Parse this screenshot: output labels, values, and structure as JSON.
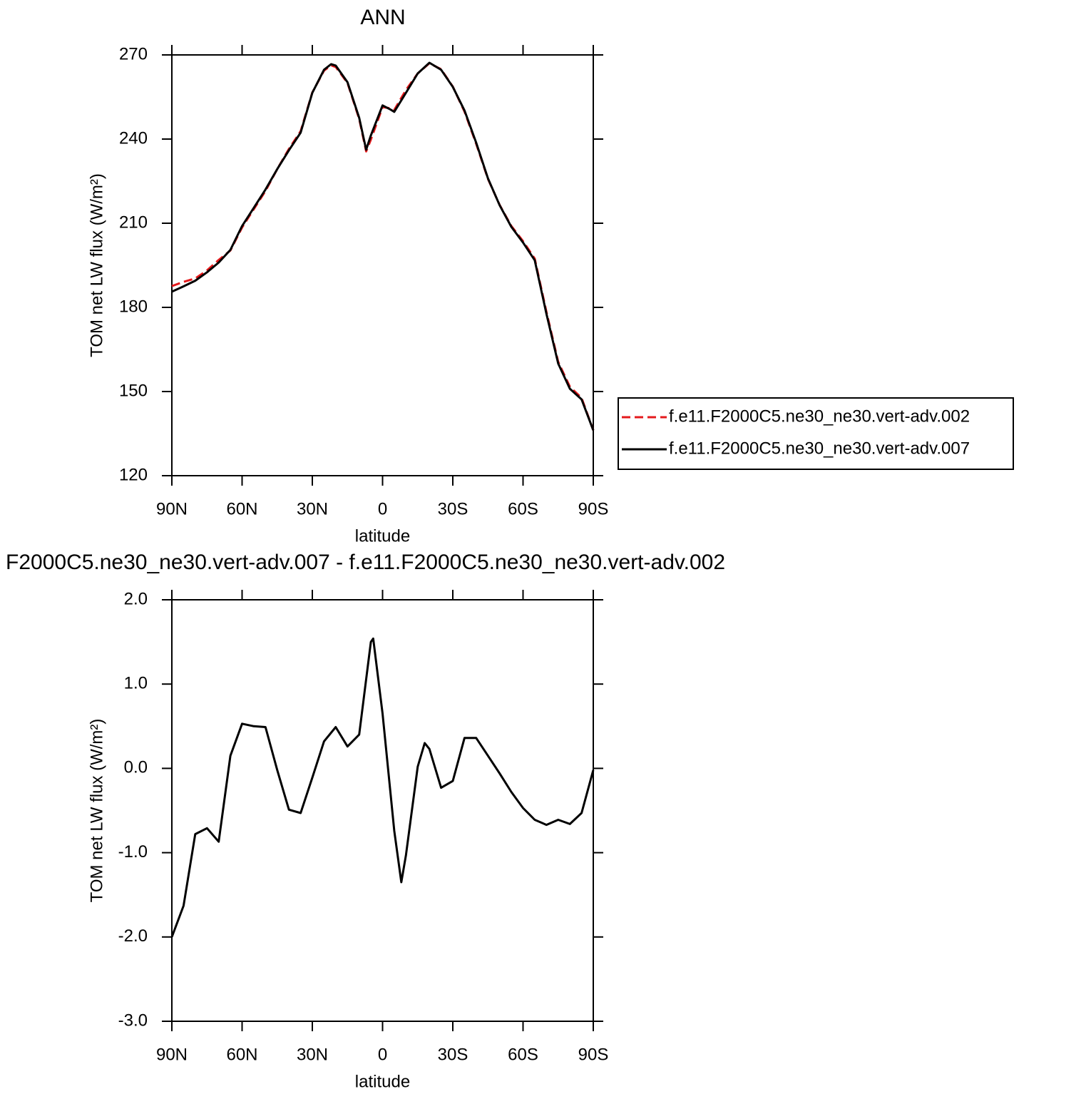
{
  "chart_data": [
    {
      "type": "line",
      "title": "ANN",
      "xlabel": "latitude",
      "ylabel": "TOM net LW flux (W/m²)",
      "x": [
        90,
        85,
        80,
        75,
        70,
        65,
        60,
        55,
        50,
        45,
        40,
        35,
        30,
        25,
        22,
        20,
        15,
        10,
        7,
        5,
        0,
        -3,
        -5,
        -10,
        -15,
        -20,
        -25,
        -30,
        -35,
        -40,
        -45,
        -50,
        -55,
        -60,
        -65,
        -70,
        -75,
        -80,
        -85,
        -90
      ],
      "series": [
        {
          "name": "f.e11.F2000C5.ne30_ne30.vert-adv.002",
          "color": "#e41a1c",
          "line_style": "dashed",
          "values": [
            187.6,
            189.1,
            190.3,
            193.2,
            196.9,
            200.3,
            208.5,
            215,
            221.5,
            229.3,
            236.5,
            242.8,
            256.6,
            264.4,
            266.3,
            265.7,
            260,
            247.2,
            235.6,
            239.8,
            251.4,
            251,
            250.4,
            257.5,
            263.4,
            267,
            264.9,
            258.7,
            249.8,
            238.3,
            225.8,
            216.5,
            209,
            203.6,
            197.4,
            178.4,
            160.6,
            151.7,
            147.7,
            136.2
          ]
        },
        {
          "name": "f.e11.F2000C5.ne30_ne30.vert-adv.007",
          "color": "#000000",
          "line_style": "solid",
          "values": [
            185.6,
            187.5,
            189.5,
            192.5,
            196,
            200.5,
            209,
            215.5,
            222,
            229.3,
            236,
            242.3,
            256.5,
            264.7,
            266.7,
            266.2,
            260.3,
            247.6,
            236.2,
            241.3,
            252,
            250.7,
            249.7,
            256.5,
            263.4,
            267.2,
            264.7,
            258.6,
            250.2,
            238.7,
            226,
            216.4,
            208.7,
            203.1,
            196.8,
            177.7,
            160,
            151,
            147.2,
            136.2
          ]
        }
      ],
      "xlim": [
        90,
        -90
      ],
      "xticks": [
        {
          "value": 90,
          "label": "90N"
        },
        {
          "value": 60,
          "label": "60N"
        },
        {
          "value": 30,
          "label": "30N"
        },
        0,
        {
          "value": -30,
          "label": "30S"
        },
        {
          "value": -60,
          "label": "60S"
        },
        {
          "value": -90,
          "label": "90S"
        }
      ],
      "ylim": [
        120,
        270
      ],
      "yticks": [
        120,
        150,
        180,
        210,
        240,
        270
      ],
      "legend": "right"
    },
    {
      "type": "line",
      "title": "F2000C5.ne30_ne30.vert-adv.007 - f.e11.F2000C5.ne30_ne30.vert-adv.002",
      "xlabel": "latitude",
      "ylabel": "TOM net LW flux (W/m²)",
      "x": [
        90,
        85,
        80,
        75,
        70,
        65,
        60,
        55,
        50,
        45,
        40,
        35,
        30,
        25,
        20,
        15,
        10,
        5,
        4,
        0,
        -5,
        -8,
        -10,
        -15,
        -18,
        -20,
        -25,
        -30,
        -35,
        -40,
        -45,
        -50,
        -55,
        -60,
        -65,
        -70,
        -75,
        -80,
        -85,
        -90
      ],
      "color": "#000000",
      "values": [
        -2.0,
        -1.63,
        -0.78,
        -0.71,
        -0.87,
        0.15,
        0.53,
        0.5,
        0.49,
        -0.02,
        -0.49,
        -0.53,
        -0.11,
        0.32,
        0.49,
        0.26,
        0.4,
        1.5,
        1.54,
        0.65,
        -0.74,
        -1.35,
        -1.03,
        0.02,
        0.3,
        0.23,
        -0.23,
        -0.15,
        0.36,
        0.36,
        0.15,
        -0.06,
        -0.28,
        -0.47,
        -0.61,
        -0.67,
        -0.61,
        -0.66,
        -0.53,
        -0.02
      ],
      "xlim": [
        90,
        -90
      ],
      "xticks": [
        {
          "value": 90,
          "label": "90N"
        },
        {
          "value": 60,
          "label": "60N"
        },
        {
          "value": 30,
          "label": "30N"
        },
        0,
        {
          "value": -30,
          "label": "30S"
        },
        {
          "value": -60,
          "label": "60S"
        },
        {
          "value": -90,
          "label": "90S"
        }
      ],
      "ylim": [
        -3,
        2
      ],
      "yticks": [
        {
          "value": -3,
          "label": "-3.0"
        },
        {
          "value": -2,
          "label": "-2.0"
        },
        {
          "value": -1,
          "label": "-1.0"
        },
        {
          "value": 0,
          "label": "0.0"
        },
        {
          "value": 1,
          "label": "1.0"
        },
        {
          "value": 2,
          "label": "2.0"
        }
      ]
    }
  ]
}
